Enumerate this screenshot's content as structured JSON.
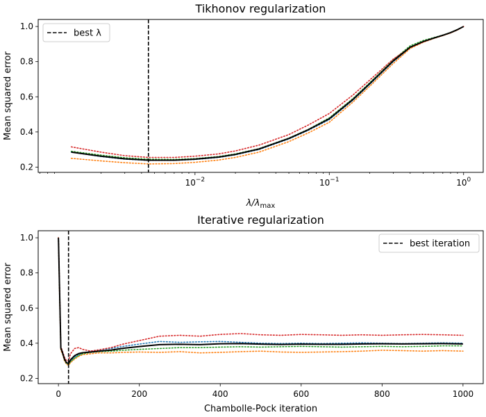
{
  "chart_data": [
    {
      "type": "line",
      "title": "Tikhonov regularization",
      "xlabel": "λ/λ",
      "xlabel_sub": "max",
      "ylabel": "Mean squared error",
      "xscale": "log",
      "xlim": [
        0.00068,
        1.4
      ],
      "ylim": [
        0.17,
        1.04
      ],
      "xticks": [
        0.01,
        0.1,
        1
      ],
      "xtick_labels": [
        {
          "base": "10",
          "exp": "−2"
        },
        {
          "base": "10",
          "exp": "−1"
        },
        {
          "base": "10",
          "exp": "0"
        }
      ],
      "yticks": [
        0.2,
        0.4,
        0.6,
        0.8,
        1.0
      ],
      "ytick_labels": [
        "0.2",
        "0.4",
        "0.6",
        "0.8",
        "1.0"
      ],
      "vline": 0.0045,
      "legend": {
        "position": "top-left",
        "label": "best λ"
      },
      "x": [
        0.0012,
        0.002,
        0.003,
        0.0045,
        0.007,
        0.01,
        0.015,
        0.02,
        0.03,
        0.05,
        0.07,
        0.1,
        0.15,
        0.2,
        0.3,
        0.4,
        0.5,
        0.6,
        0.7,
        0.8,
        0.9,
        1.0
      ],
      "series": [
        {
          "color": "#1f77b4",
          "style": "dotted",
          "values": [
            0.285,
            0.26,
            0.245,
            0.238,
            0.238,
            0.243,
            0.255,
            0.27,
            0.3,
            0.36,
            0.41,
            0.47,
            0.58,
            0.67,
            0.8,
            0.88,
            0.915,
            0.935,
            0.95,
            0.965,
            0.982,
            1.0
          ]
        },
        {
          "color": "#ff7f0e",
          "style": "dotted",
          "values": [
            0.25,
            0.235,
            0.225,
            0.218,
            0.22,
            0.227,
            0.24,
            0.255,
            0.285,
            0.345,
            0.395,
            0.455,
            0.57,
            0.66,
            0.79,
            0.875,
            0.91,
            0.932,
            0.948,
            0.963,
            0.98,
            1.0
          ]
        },
        {
          "color": "#2ca02c",
          "style": "dotted",
          "values": [
            0.29,
            0.268,
            0.253,
            0.245,
            0.244,
            0.248,
            0.26,
            0.275,
            0.305,
            0.365,
            0.415,
            0.48,
            0.59,
            0.68,
            0.81,
            0.89,
            0.92,
            0.937,
            0.951,
            0.966,
            0.983,
            1.0
          ]
        },
        {
          "color": "#d62728",
          "style": "dotted",
          "values": [
            0.315,
            0.285,
            0.265,
            0.255,
            0.255,
            0.262,
            0.275,
            0.292,
            0.325,
            0.385,
            0.44,
            0.505,
            0.61,
            0.695,
            0.815,
            0.88,
            0.912,
            0.933,
            0.949,
            0.964,
            0.981,
            1.0
          ]
        },
        {
          "color": "#000000",
          "style": "solid",
          "values": [
            0.285,
            0.262,
            0.247,
            0.239,
            0.239,
            0.245,
            0.257,
            0.272,
            0.303,
            0.363,
            0.413,
            0.475,
            0.585,
            0.675,
            0.805,
            0.882,
            0.914,
            0.934,
            0.95,
            0.965,
            0.982,
            1.0
          ]
        }
      ]
    },
    {
      "type": "line",
      "title": "Iterative regularization",
      "xlabel": "Chambolle-Pock iteration",
      "ylabel": "Mean squared error",
      "xlim": [
        -50,
        1050
      ],
      "ylim": [
        0.17,
        1.04
      ],
      "xticks": [
        0,
        200,
        400,
        600,
        800,
        1000
      ],
      "xtick_labels": [
        "0",
        "200",
        "400",
        "600",
        "800",
        "1000"
      ],
      "yticks": [
        0.2,
        0.4,
        0.6,
        0.8,
        1.0
      ],
      "ytick_labels": [
        "0.2",
        "0.4",
        "0.6",
        "0.8",
        "1.0"
      ],
      "vline": 25,
      "legend": {
        "position": "top-right",
        "label": "best iteration"
      },
      "x": [
        0,
        3,
        6,
        10,
        15,
        20,
        25,
        30,
        40,
        50,
        60,
        80,
        100,
        130,
        160,
        200,
        250,
        300,
        350,
        400,
        450,
        500,
        550,
        600,
        650,
        700,
        750,
        800,
        850,
        900,
        950,
        1000
      ],
      "series": [
        {
          "color": "#1f77b4",
          "style": "dotted",
          "values": [
            1.0,
            0.7,
            0.38,
            0.35,
            0.31,
            0.29,
            0.285,
            0.3,
            0.32,
            0.335,
            0.345,
            0.355,
            0.362,
            0.37,
            0.382,
            0.395,
            0.41,
            0.405,
            0.408,
            0.41,
            0.405,
            0.4,
            0.398,
            0.4,
            0.398,
            0.4,
            0.402,
            0.4,
            0.398,
            0.4,
            0.402,
            0.4
          ]
        },
        {
          "color": "#ff7f0e",
          "style": "dotted",
          "values": [
            1.0,
            0.65,
            0.36,
            0.34,
            0.3,
            0.28,
            0.275,
            0.29,
            0.31,
            0.325,
            0.335,
            0.34,
            0.345,
            0.345,
            0.348,
            0.35,
            0.348,
            0.352,
            0.345,
            0.348,
            0.352,
            0.355,
            0.35,
            0.348,
            0.35,
            0.352,
            0.355,
            0.36,
            0.358,
            0.355,
            0.358,
            0.355
          ]
        },
        {
          "color": "#2ca02c",
          "style": "dotted",
          "values": [
            1.0,
            0.68,
            0.37,
            0.345,
            0.305,
            0.285,
            0.28,
            0.295,
            0.315,
            0.33,
            0.34,
            0.348,
            0.352,
            0.355,
            0.36,
            0.365,
            0.37,
            0.375,
            0.375,
            0.378,
            0.38,
            0.378,
            0.38,
            0.382,
            0.38,
            0.378,
            0.38,
            0.382,
            0.38,
            0.382,
            0.385,
            0.385
          ]
        },
        {
          "color": "#d62728",
          "style": "dotted",
          "values": [
            1.0,
            0.72,
            0.38,
            0.355,
            0.32,
            0.3,
            0.3,
            0.34,
            0.37,
            0.375,
            0.365,
            0.355,
            0.362,
            0.375,
            0.395,
            0.415,
            0.44,
            0.445,
            0.44,
            0.45,
            0.455,
            0.448,
            0.445,
            0.45,
            0.448,
            0.445,
            0.448,
            0.445,
            0.448,
            0.45,
            0.448,
            0.445
          ]
        },
        {
          "color": "#000000",
          "style": "solid",
          "values": [
            1.0,
            0.69,
            0.373,
            0.347,
            0.309,
            0.289,
            0.285,
            0.306,
            0.329,
            0.341,
            0.346,
            0.35,
            0.355,
            0.361,
            0.371,
            0.381,
            0.392,
            0.394,
            0.392,
            0.397,
            0.398,
            0.395,
            0.393,
            0.395,
            0.394,
            0.394,
            0.396,
            0.397,
            0.396,
            0.397,
            0.398,
            0.396
          ]
        }
      ]
    }
  ]
}
